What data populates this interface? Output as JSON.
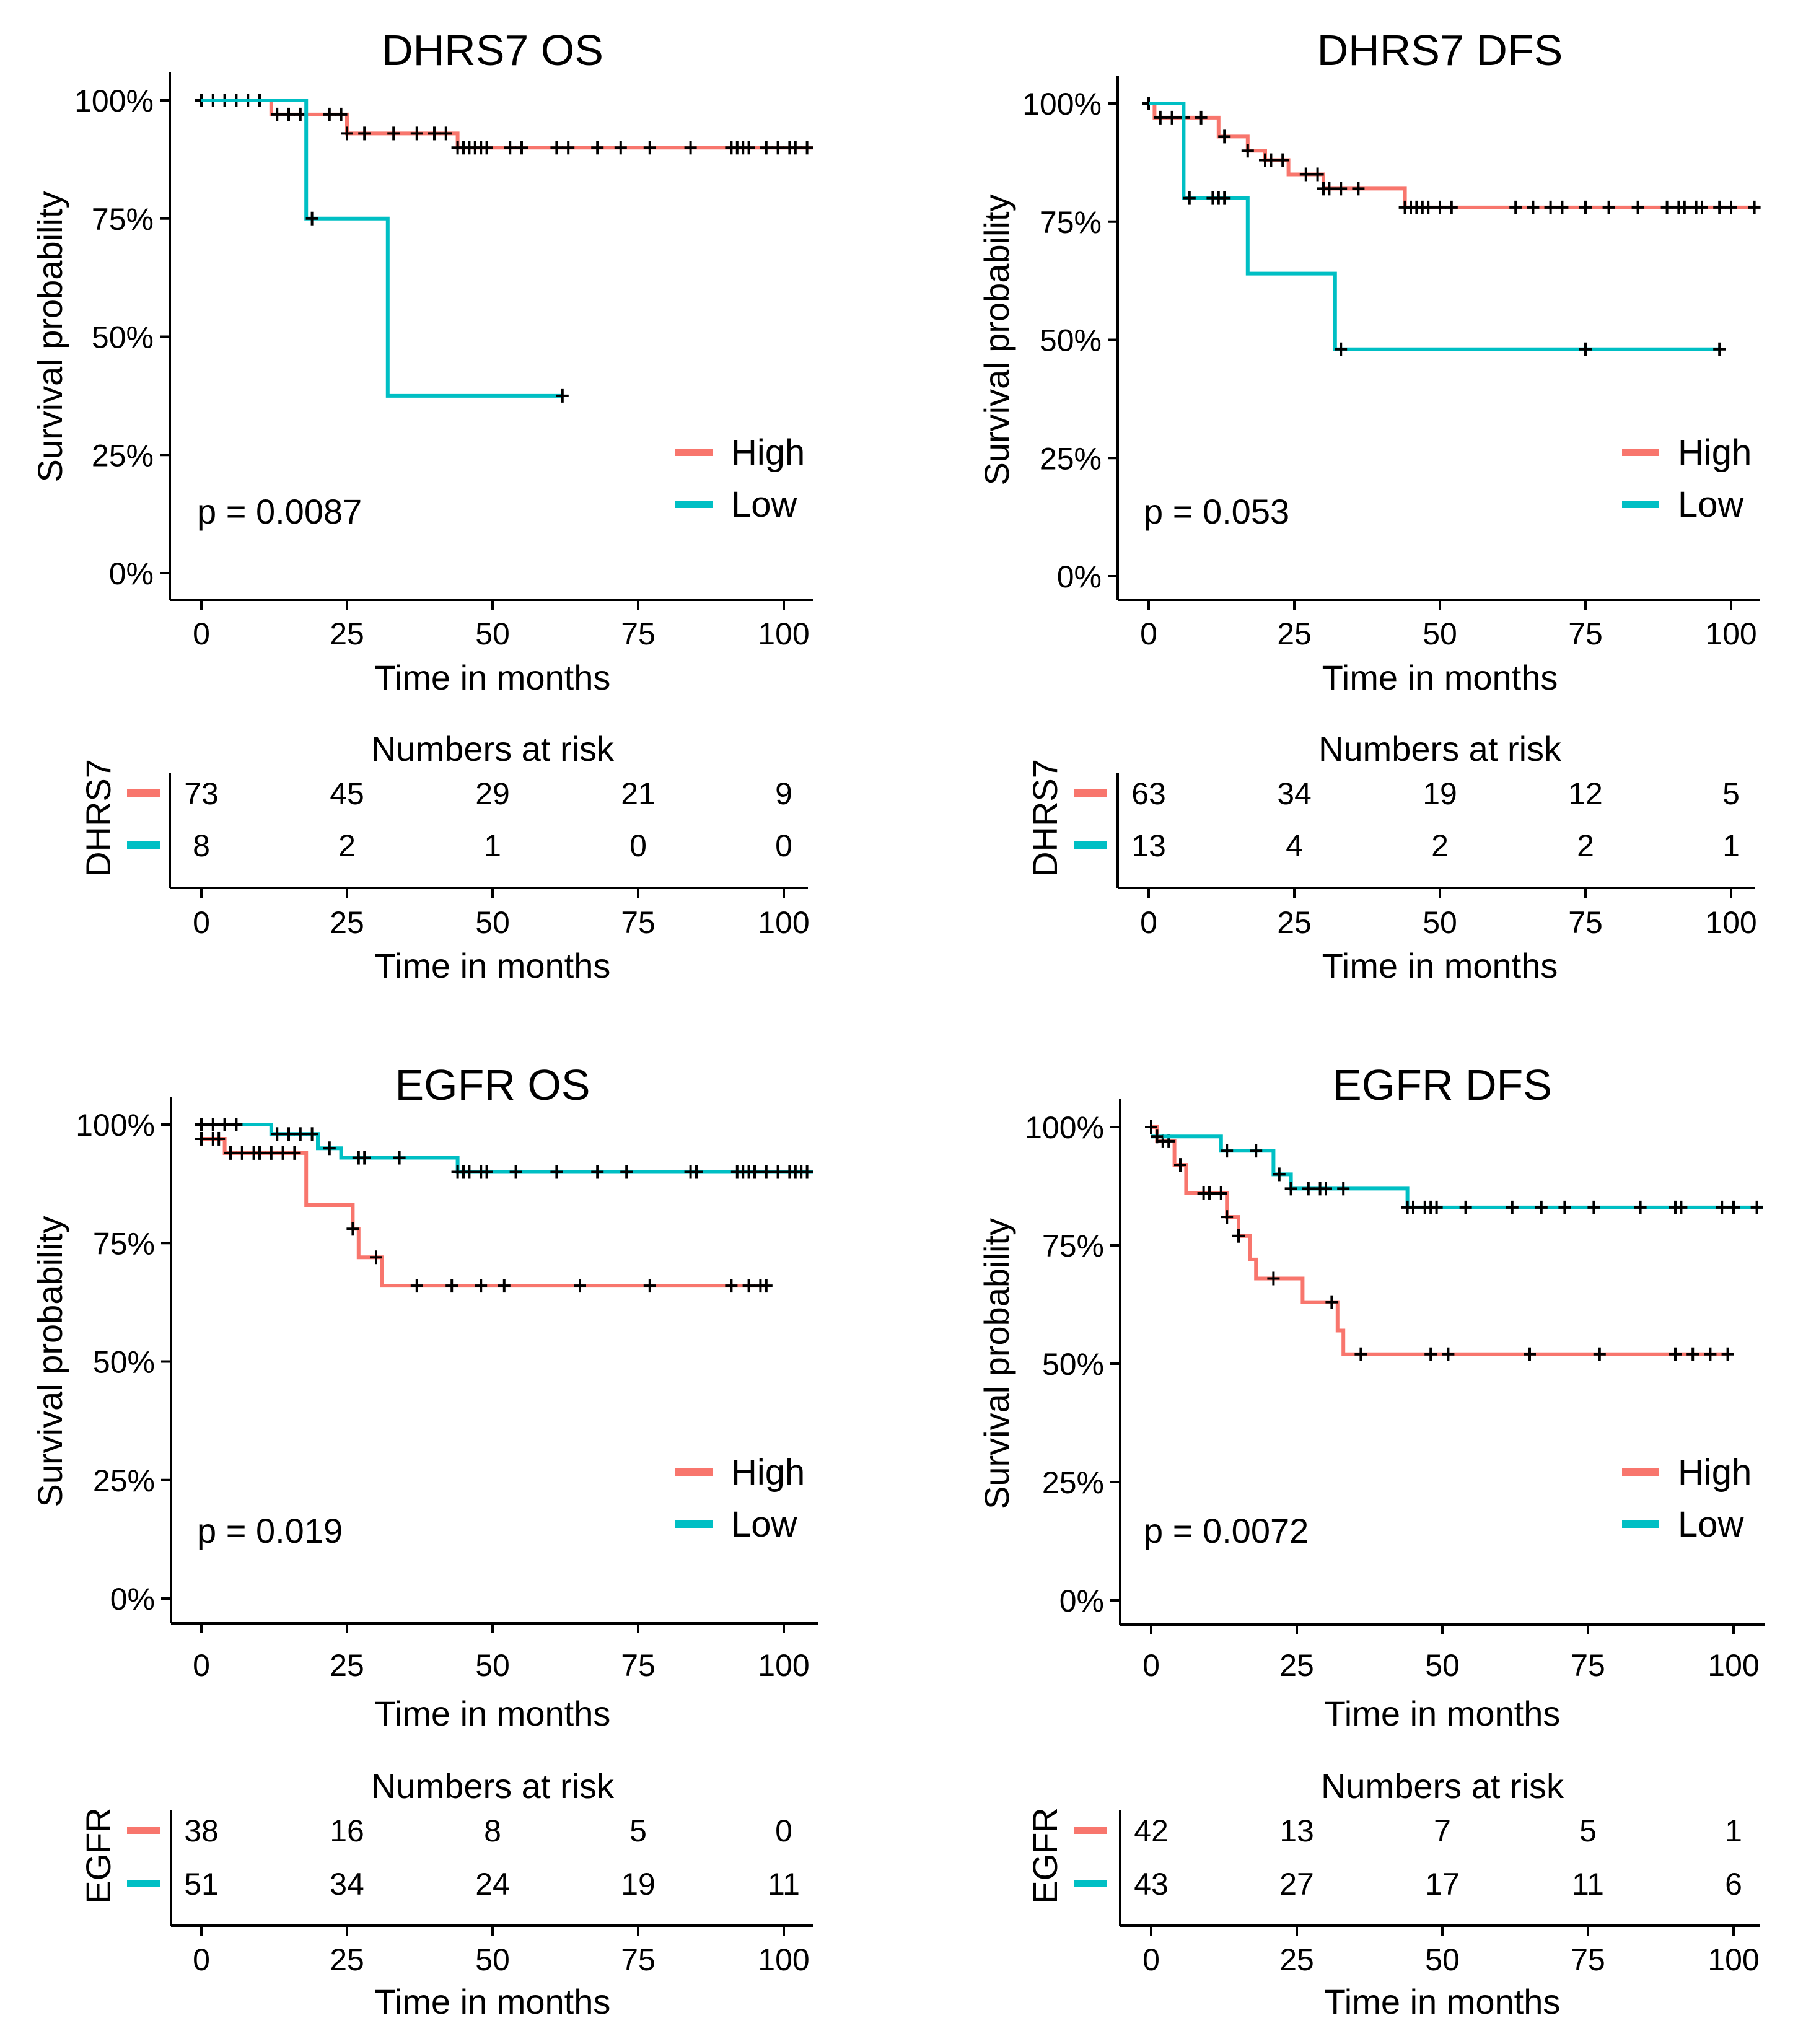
{
  "colors": {
    "High": "#F8766D",
    "Low": "#00BFC4",
    "axis": "#000000"
  },
  "chart_data": [
    {
      "type": "line",
      "subtype": "kaplan-meier",
      "title": "DHRS7 OS",
      "xlabel": "Time in months",
      "ylabel": "Survival probability",
      "xlim": [
        0,
        105
      ],
      "ylim": [
        0,
        1
      ],
      "xticks": [
        "0",
        "25",
        "50",
        "75",
        "100"
      ],
      "yticks": [
        "0%",
        "25%",
        "50%",
        "75%",
        "100%"
      ],
      "pvalue": "p = 0.0087",
      "legend": [
        "High",
        "Low"
      ],
      "series": [
        {
          "name": "High",
          "steps": [
            [
              0,
              1.0
            ],
            [
              12,
              0.97
            ],
            [
              25,
              0.93
            ],
            [
              44,
              0.9
            ],
            [
              105,
              0.9
            ]
          ],
          "censor": [
            0,
            2,
            4,
            6,
            8,
            10,
            13,
            15,
            17,
            22,
            24,
            25,
            28,
            33,
            37,
            40,
            42,
            44,
            45,
            46,
            47,
            48,
            49,
            53,
            55,
            61,
            63,
            68,
            72,
            77,
            84,
            91,
            92,
            93,
            94,
            97,
            99,
            101,
            102,
            104
          ]
        },
        {
          "name": "Low",
          "steps": [
            [
              0,
              1.0
            ],
            [
              18,
              0.75
            ],
            [
              32,
              0.375
            ],
            [
              62,
              0.375
            ]
          ],
          "censor": [
            19,
            62
          ]
        }
      ],
      "risk": {
        "label": "Numbers at risk",
        "group": "DHRS7",
        "times": [
          0,
          25,
          50,
          75,
          100
        ],
        "High": [
          "73",
          "45",
          "29",
          "21",
          "9"
        ],
        "Low": [
          "8",
          "2",
          "1",
          "0",
          "0"
        ]
      }
    },
    {
      "type": "line",
      "subtype": "kaplan-meier",
      "title": "DHRS7 DFS",
      "xlabel": "Time in months",
      "ylabel": "Survival probability",
      "xlim": [
        0,
        105
      ],
      "ylim": [
        0,
        1
      ],
      "xticks": [
        "0",
        "25",
        "50",
        "75",
        "100"
      ],
      "yticks": [
        "0%",
        "25%",
        "50%",
        "75%",
        "100%"
      ],
      "pvalue": "p = 0.053",
      "legend": [
        "High",
        "Low"
      ],
      "series": [
        {
          "name": "High",
          "steps": [
            [
              0,
              1.0
            ],
            [
              1,
              0.97
            ],
            [
              12,
              0.93
            ],
            [
              17,
              0.9
            ],
            [
              20,
              0.88
            ],
            [
              24,
              0.85
            ],
            [
              30,
              0.82
            ],
            [
              44,
              0.78
            ],
            [
              105,
              0.78
            ]
          ],
          "censor": [
            0,
            2,
            4,
            6,
            9,
            13,
            17,
            20,
            21,
            23,
            27,
            29,
            30,
            31,
            33,
            36,
            44,
            45,
            46,
            47,
            48,
            50,
            52,
            63,
            66,
            69,
            71,
            75,
            79,
            84,
            89,
            91,
            92,
            94,
            95,
            98,
            100,
            104
          ]
        },
        {
          "name": "Low",
          "steps": [
            [
              0,
              1.0
            ],
            [
              6,
              0.8
            ],
            [
              17,
              0.64
            ],
            [
              32,
              0.48
            ],
            [
              98,
              0.48
            ]
          ],
          "censor": [
            7,
            11,
            12,
            13,
            33,
            75,
            98
          ]
        }
      ],
      "risk": {
        "label": "Numbers at risk",
        "group": "DHRS7",
        "times": [
          0,
          25,
          50,
          75,
          100
        ],
        "High": [
          "63",
          "34",
          "19",
          "12",
          "5"
        ],
        "Low": [
          "13",
          "4",
          "2",
          "2",
          "1"
        ]
      }
    },
    {
      "type": "line",
      "subtype": "kaplan-meier",
      "title": "EGFR OS",
      "xlabel": "Time in months",
      "ylabel": "Survival probability",
      "xlim": [
        0,
        105
      ],
      "ylim": [
        0,
        1
      ],
      "xticks": [
        "0",
        "25",
        "50",
        "75",
        "100"
      ],
      "yticks": [
        "0%",
        "25%",
        "50%",
        "75%",
        "100%"
      ],
      "pvalue": "p = 0.019",
      "legend": [
        "High",
        "Low"
      ],
      "series": [
        {
          "name": "High",
          "steps": [
            [
              0,
              0.97
            ],
            [
              4,
              0.94
            ],
            [
              18,
              0.83
            ],
            [
              26,
              0.78
            ],
            [
              27,
              0.72
            ],
            [
              31,
              0.66
            ],
            [
              97,
              0.66
            ]
          ],
          "censor": [
            0,
            2,
            3,
            5,
            7,
            9,
            10,
            12,
            14,
            16,
            26,
            30,
            37,
            43,
            48,
            52,
            65,
            77,
            91,
            94,
            96,
            97
          ]
        },
        {
          "name": "Low",
          "steps": [
            [
              0,
              1.0
            ],
            [
              12,
              0.98
            ],
            [
              20,
              0.95
            ],
            [
              24,
              0.93
            ],
            [
              44,
              0.9
            ],
            [
              105,
              0.9
            ]
          ],
          "censor": [
            0,
            2,
            4,
            6,
            13,
            15,
            17,
            19,
            22,
            27,
            28,
            34,
            44,
            45,
            46,
            48,
            49,
            54,
            61,
            68,
            73,
            84,
            85,
            92,
            93,
            94,
            95,
            97,
            99,
            101,
            102,
            103,
            104
          ]
        }
      ],
      "risk": {
        "label": "Numbers at risk",
        "group": "EGFR",
        "times": [
          0,
          25,
          50,
          75,
          100
        ],
        "High": [
          "38",
          "16",
          "8",
          "5",
          "0"
        ],
        "Low": [
          "51",
          "34",
          "24",
          "19",
          "11"
        ]
      }
    },
    {
      "type": "line",
      "subtype": "kaplan-meier",
      "title": "EGFR DFS",
      "xlabel": "Time in months",
      "ylabel": "Survival probability",
      "xlim": [
        0,
        105
      ],
      "ylim": [
        0,
        1
      ],
      "xticks": [
        "0",
        "25",
        "50",
        "75",
        "100"
      ],
      "yticks": [
        "0%",
        "25%",
        "50%",
        "75%",
        "100%"
      ],
      "pvalue": "p = 0.0072",
      "legend": [
        "High",
        "Low"
      ],
      "series": [
        {
          "name": "High",
          "steps": [
            [
              0,
              1.0
            ],
            [
              1,
              0.97
            ],
            [
              4,
              0.92
            ],
            [
              6,
              0.86
            ],
            [
              13,
              0.81
            ],
            [
              15,
              0.77
            ],
            [
              17,
              0.72
            ],
            [
              18,
              0.68
            ],
            [
              26,
              0.63
            ],
            [
              32,
              0.57
            ],
            [
              33,
              0.52
            ],
            [
              99,
              0.52
            ]
          ],
          "censor": [
            0,
            2,
            3,
            5,
            9,
            10,
            12,
            13,
            15,
            21,
            31,
            36,
            48,
            51,
            65,
            77,
            90,
            93,
            96,
            99
          ]
        },
        {
          "name": "Low",
          "steps": [
            [
              0,
              0.98
            ],
            [
              12,
              0.95
            ],
            [
              21,
              0.9
            ],
            [
              24,
              0.87
            ],
            [
              44,
              0.83
            ],
            [
              105,
              0.83
            ]
          ],
          "censor": [
            1,
            13,
            18,
            22,
            24,
            27,
            29,
            30,
            33,
            44,
            45,
            47,
            48,
            49,
            54,
            62,
            67,
            71,
            76,
            84,
            90,
            91,
            98,
            100,
            104
          ]
        }
      ],
      "risk": {
        "label": "Numbers at risk",
        "group": "EGFR",
        "times": [
          0,
          25,
          50,
          75,
          100
        ],
        "High": [
          "42",
          "13",
          "7",
          "5",
          "1"
        ],
        "Low": [
          "43",
          "27",
          "17",
          "11",
          "6"
        ]
      }
    }
  ]
}
